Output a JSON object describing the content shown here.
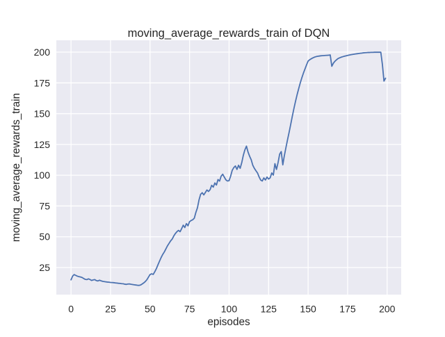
{
  "figure": {
    "title": "moving_average_rewards_train of DQN",
    "xlabel": "episodes",
    "ylabel": "moving_average_rewards_train"
  },
  "chart_data": {
    "type": "line",
    "title": "moving_average_rewards_train of DQN",
    "xlabel": "episodes",
    "ylabel": "moving_average_rewards_train",
    "style": "seaborn-darkgrid",
    "grid": true,
    "legend": false,
    "x_ticks": [
      0,
      25,
      50,
      75,
      100,
      125,
      150,
      175,
      200
    ],
    "y_ticks": [
      25,
      50,
      75,
      100,
      125,
      150,
      175,
      200
    ],
    "xlim": [
      -9.3,
      208.9
    ],
    "ylim": [
      3.0,
      209.6
    ],
    "colors": {
      "line": "#4C72B0",
      "axes_background": "#EAEAF2",
      "grid": "#FFFFFF",
      "figure_background": "#FFFFFF",
      "text": "#262626"
    },
    "series": [
      {
        "name": "moving_average_rewards_train",
        "color": "#4C72B0",
        "x_start": 0,
        "x_step": 1,
        "x_description": "episode index 0..199",
        "y": [
          15.0,
          18.0,
          19.3,
          18.6,
          18.0,
          17.6,
          17.3,
          16.9,
          16.1,
          15.4,
          15.2,
          15.8,
          15.3,
          14.5,
          14.9,
          15.2,
          14.4,
          14.1,
          14.7,
          14.2,
          13.8,
          13.6,
          13.4,
          13.2,
          13.1,
          12.9,
          12.8,
          12.7,
          12.5,
          12.4,
          12.2,
          12.1,
          11.9,
          11.8,
          11.5,
          11.3,
          11.6,
          11.7,
          11.4,
          11.2,
          11.0,
          10.8,
          10.6,
          10.5,
          10.8,
          11.6,
          12.5,
          13.6,
          15.1,
          17.2,
          19.3,
          19.9,
          19.4,
          21.6,
          24.1,
          27.2,
          30.2,
          33.1,
          35.6,
          37.6,
          40.1,
          42.6,
          44.6,
          46.6,
          48.1,
          50.6,
          52.6,
          54.1,
          55.2,
          54.1,
          56.6,
          59.4,
          57.5,
          60.7,
          58.9,
          62.3,
          63.2,
          63.8,
          65.1,
          69.8,
          73.6,
          80.0,
          84.5,
          85.8,
          84.0,
          86.0,
          88.0,
          86.8,
          88.3,
          91.8,
          90.3,
          93.7,
          92.0,
          96.5,
          95.2,
          99.3,
          100.8,
          98.4,
          96.2,
          95.3,
          95.6,
          99.3,
          104.0,
          106.2,
          107.5,
          104.7,
          108.1,
          105.6,
          110.1,
          116.1,
          120.6,
          123.6,
          118.8,
          115.4,
          112.6,
          108.1,
          105.6,
          103.6,
          101.8,
          98.6,
          96.1,
          95.3,
          97.8,
          96.1,
          98.5,
          96.9,
          97.9,
          101.8,
          100.1,
          109.4,
          104.7,
          110.3,
          117.1,
          119.2,
          108.4,
          116.1,
          122.6,
          128.9,
          134.9,
          141.3,
          147.8,
          154.0,
          159.8,
          165.2,
          170.1,
          174.8,
          179.0,
          182.8,
          186.2,
          189.6,
          192.7,
          193.8,
          194.6,
          195.3,
          195.9,
          196.3,
          196.6,
          196.8,
          197.0,
          197.1,
          197.2,
          197.3,
          197.4,
          197.5,
          197.7,
          188.5,
          191.0,
          192.6,
          193.8,
          194.8,
          195.4,
          195.9,
          196.3,
          196.7,
          197.0,
          197.3,
          197.6,
          197.9,
          198.1,
          198.3,
          198.5,
          198.7,
          198.9,
          199.1,
          199.2,
          199.4,
          199.5,
          199.6,
          199.7,
          199.7,
          199.8,
          199.8,
          199.9,
          199.9,
          199.9,
          199.9,
          199.9,
          190.0,
          176.5,
          178.8
        ]
      }
    ]
  }
}
